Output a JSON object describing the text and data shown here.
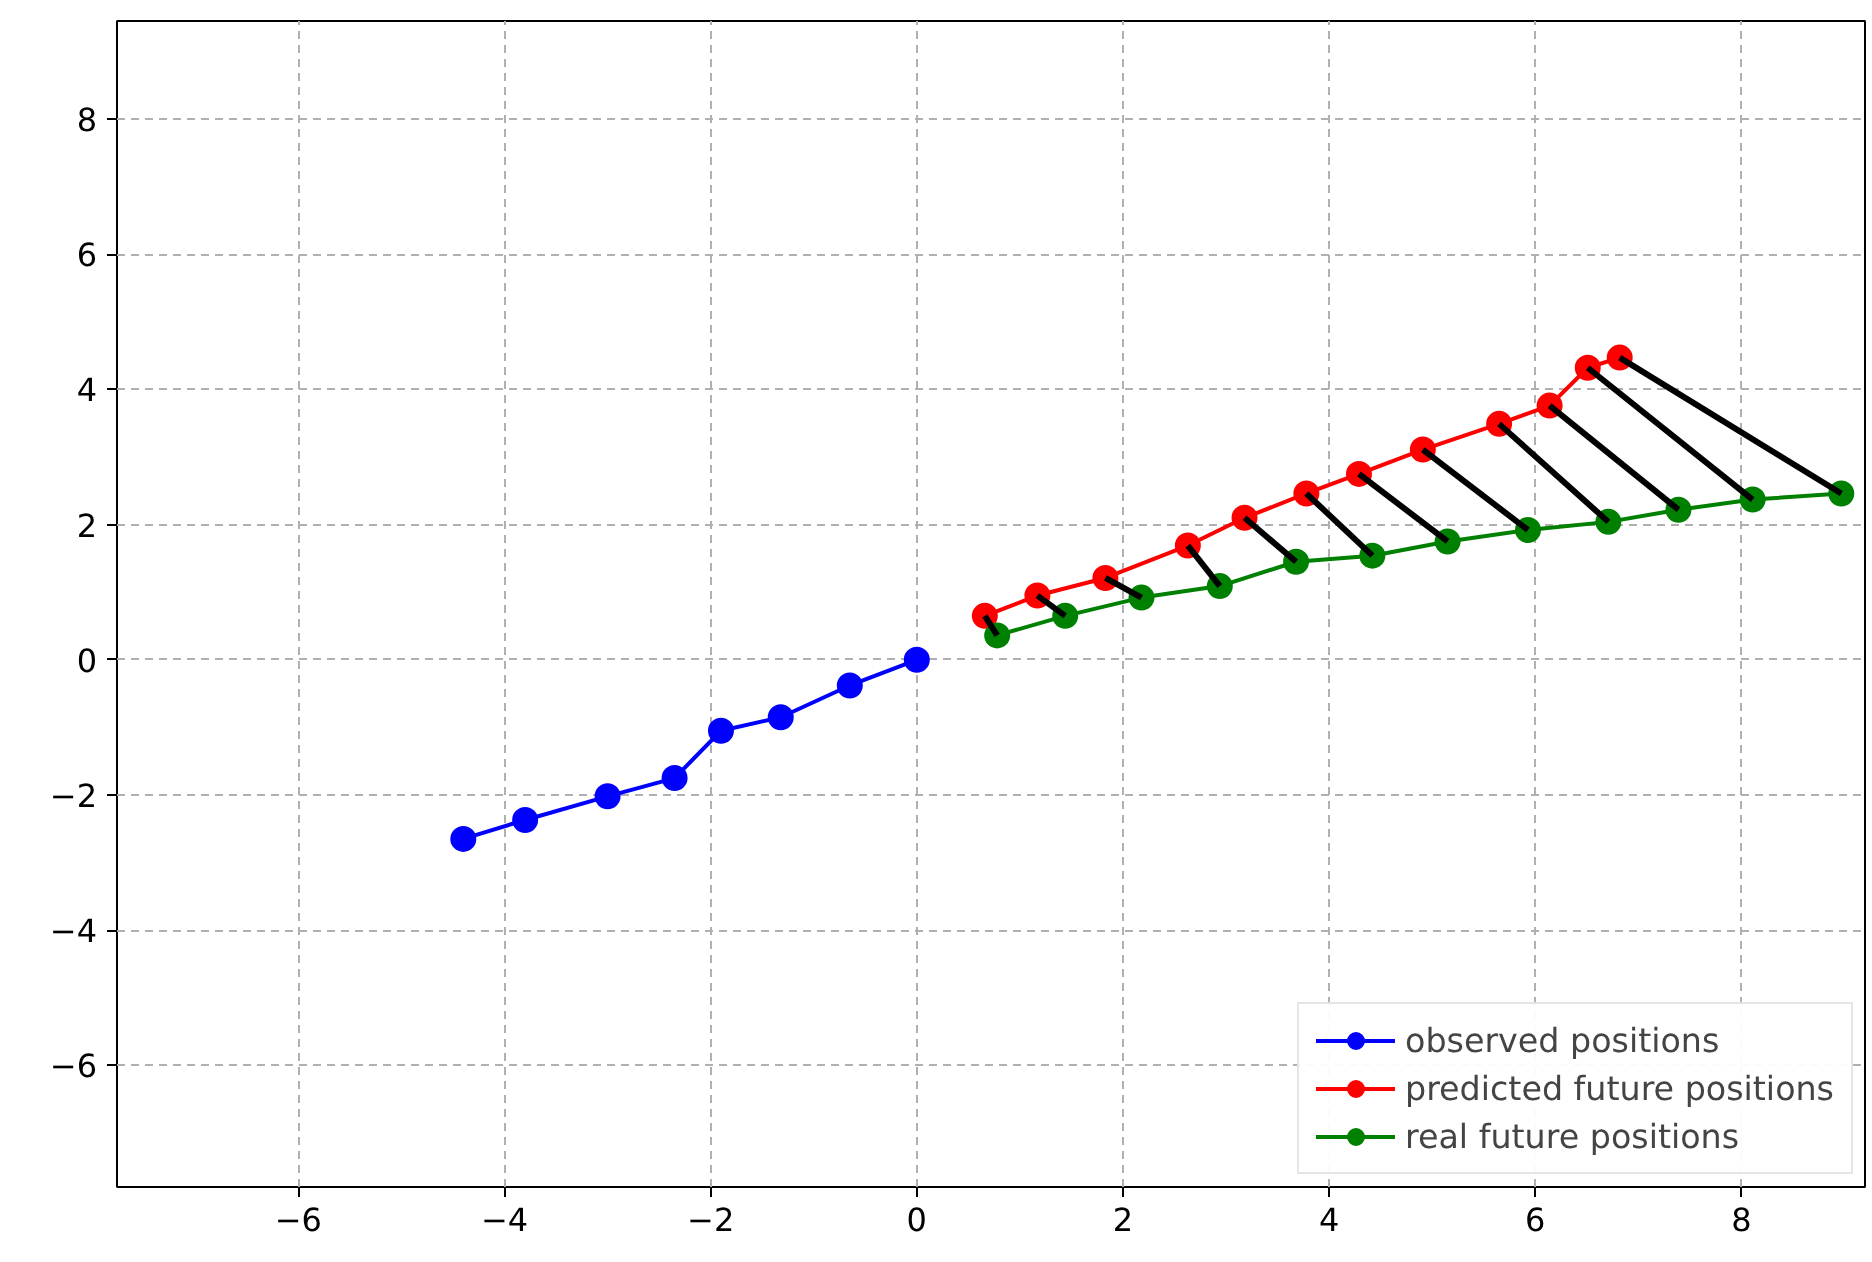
{
  "chart_data": {
    "type": "line",
    "xlim": [
      -7.76,
      9.2
    ],
    "ylim": [
      -7.8,
      9.45
    ],
    "xticks": [
      {
        "value": -6,
        "label": "−6"
      },
      {
        "value": -4,
        "label": "−4"
      },
      {
        "value": -2,
        "label": "−2"
      },
      0,
      2,
      4,
      6,
      8
    ],
    "yticks": [
      {
        "value": -6,
        "label": "−6"
      },
      {
        "value": -4,
        "label": "−4"
      },
      {
        "value": -2,
        "label": "−2"
      },
      0,
      2,
      4,
      6,
      8
    ],
    "grid": true,
    "legend": "bottom right",
    "marker": "circle",
    "series": [
      {
        "name": "observed positions",
        "color": "#0000ff",
        "x": [
          -4.4,
          -3.8,
          -3.0,
          -2.35,
          -1.9,
          -1.32,
          -0.65,
          0
        ],
        "values": [
          -2.65,
          -2.37,
          -2.02,
          -1.75,
          -1.05,
          -0.85,
          -0.38,
          0
        ]
      },
      {
        "name": "predicted future positions",
        "color": "#ff0000",
        "x": [
          0.66,
          1.17,
          1.83,
          2.63,
          3.18,
          3.78,
          4.29,
          4.91,
          5.65,
          6.14,
          6.51,
          6.82
        ],
        "values": [
          0.65,
          0.95,
          1.21,
          1.69,
          2.1,
          2.46,
          2.75,
          3.11,
          3.49,
          3.76,
          4.32,
          4.47
        ]
      },
      {
        "name": "real future positions",
        "color": "#008000",
        "x": [
          0.78,
          1.44,
          2.18,
          2.94,
          3.68,
          4.42,
          5.15,
          5.93,
          6.71,
          7.39,
          8.11,
          8.97
        ],
        "values": [
          0.36,
          0.65,
          0.92,
          1.09,
          1.45,
          1.54,
          1.75,
          1.92,
          2.04,
          2.22,
          2.37,
          2.46
        ]
      },
      {
        "color": "#000000",
        "marker": "none",
        "x": [
          0.66,
          0.78
        ],
        "values": [
          0.65,
          0.36
        ]
      },
      {
        "color": "#000000",
        "marker": "none",
        "x": [
          1.17,
          1.44
        ],
        "values": [
          0.95,
          0.65
        ]
      },
      {
        "color": "#000000",
        "marker": "none",
        "x": [
          1.83,
          2.18
        ],
        "values": [
          1.21,
          0.92
        ]
      },
      {
        "color": "#000000",
        "marker": "none",
        "x": [
          2.63,
          2.94
        ],
        "values": [
          1.69,
          1.09
        ]
      },
      {
        "color": "#000000",
        "marker": "none",
        "x": [
          3.18,
          3.68
        ],
        "values": [
          2.1,
          1.45
        ]
      },
      {
        "color": "#000000",
        "marker": "none",
        "x": [
          3.78,
          4.42
        ],
        "values": [
          2.46,
          1.54
        ]
      },
      {
        "color": "#000000",
        "marker": "none",
        "x": [
          4.29,
          5.15
        ],
        "values": [
          2.75,
          1.75
        ]
      },
      {
        "color": "#000000",
        "marker": "none",
        "x": [
          4.91,
          5.93
        ],
        "values": [
          3.11,
          1.92
        ]
      },
      {
        "color": "#000000",
        "marker": "none",
        "x": [
          5.65,
          6.71
        ],
        "values": [
          3.49,
          2.04
        ]
      },
      {
        "color": "#000000",
        "marker": "none",
        "x": [
          6.14,
          7.39
        ],
        "values": [
          3.76,
          2.22
        ]
      },
      {
        "color": "#000000",
        "marker": "none",
        "x": [
          6.51,
          8.11
        ],
        "values": [
          4.32,
          2.37
        ]
      },
      {
        "color": "#000000",
        "marker": "none",
        "x": [
          6.82,
          8.97
        ],
        "values": [
          4.47,
          2.46
        ]
      }
    ]
  }
}
